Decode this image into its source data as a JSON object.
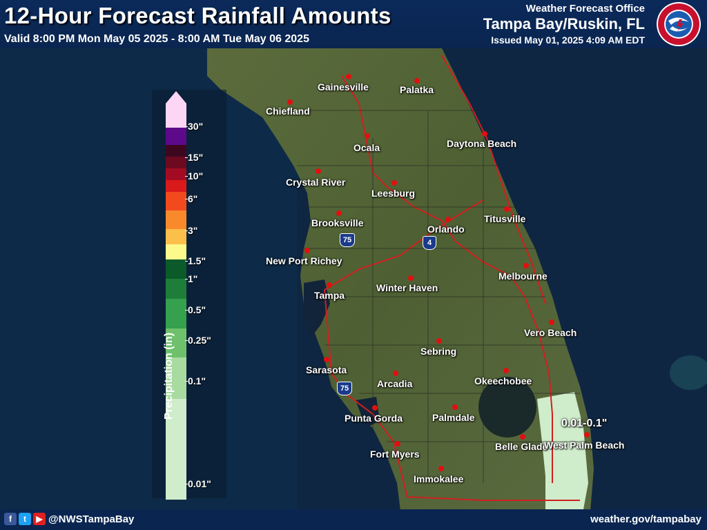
{
  "header": {
    "title": "12-Hour Forecast Rainfall Amounts",
    "valid": "Valid 8:00 PM Mon May 05 2025 - 8:00 AM Tue May 06 2025",
    "office_label": "Weather Forecast Office",
    "office_name": "Tampa Bay/Ruskin, FL",
    "issued": "Issued May 01, 2025 4:09 AM EDT"
  },
  "legend": {
    "title": "Precipitation (in)",
    "ticks": [
      "30\"",
      "15\"",
      "10\"",
      "6\"",
      "3\"",
      "1.5\"",
      "1\"",
      "0.5\"",
      "0.25\"",
      "0.1\"",
      "0.01\""
    ],
    "colors": [
      "#fdd5f5",
      "#5d0a8a",
      "#3e0720",
      "#6d0a20",
      "#a30b22",
      "#d91a1a",
      "#f24a1d",
      "#f98a2c",
      "#fcc04a",
      "#fdfa8c",
      "#0b5a2a",
      "#1f7d3a",
      "#35a04d",
      "#6fc06d",
      "#a8dba0",
      "#cfeccb"
    ],
    "heights": [
      35,
      25,
      17,
      17,
      17,
      17,
      27,
      27,
      22,
      22,
      28,
      29,
      43,
      42,
      60,
      146
    ]
  },
  "cities": [
    {
      "name": "Gainesville"
    },
    {
      "name": "Palatka"
    },
    {
      "name": "Chiefland"
    },
    {
      "name": "Ocala"
    },
    {
      "name": "Daytona Beach"
    },
    {
      "name": "Crystal River"
    },
    {
      "name": "Leesburg"
    },
    {
      "name": "Brooksville"
    },
    {
      "name": "Orlando"
    },
    {
      "name": "Titusville"
    },
    {
      "name": "New Port Richey"
    },
    {
      "name": "Melbourne"
    },
    {
      "name": "Winter Haven"
    },
    {
      "name": "Tampa"
    },
    {
      "name": "Vero Beach"
    },
    {
      "name": "Sebring"
    },
    {
      "name": "Sarasota"
    },
    {
      "name": "Arcadia"
    },
    {
      "name": "Okeechobee"
    },
    {
      "name": "Punta Gorda"
    },
    {
      "name": "Palmdale"
    },
    {
      "name": "Belle Glade"
    },
    {
      "name": "West Palm Beach"
    },
    {
      "name": "Fort Myers"
    },
    {
      "name": "Immokalee"
    }
  ],
  "shields": {
    "i75": "75",
    "i4": "4"
  },
  "rain_area_label": "0.01-0.1\"",
  "rain_area_color": "#cfeccb",
  "footer": {
    "handle": "@NWSTampaBay",
    "site": "weather.gov/tampabay",
    "social_icons": [
      "facebook-icon",
      "twitter-icon",
      "youtube-icon"
    ]
  }
}
